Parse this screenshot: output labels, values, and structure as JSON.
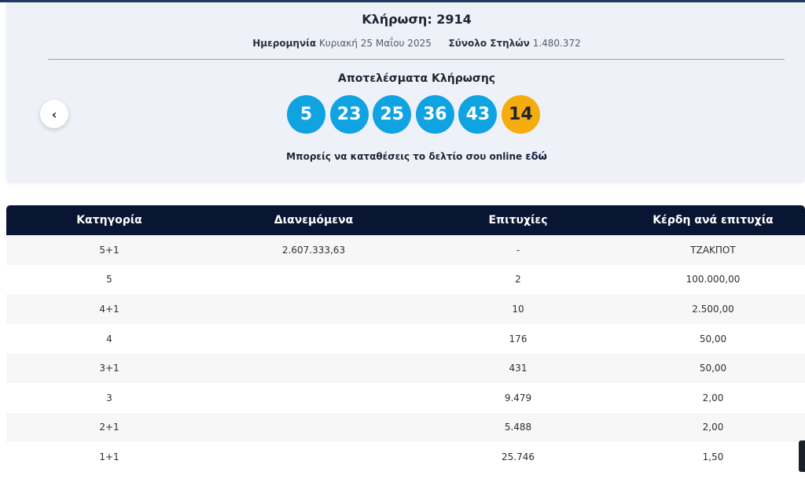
{
  "draw": {
    "title": "Κλήρωση: 2914",
    "date_label": "Ημερομηνία",
    "date_value": "Κυριακή 25 Μαΐου 2025",
    "columns_label": "Σύνολο Στηλών",
    "columns_value": "1.480.372",
    "results_title": "Αποτελέσματα Κλήρωσης",
    "numbers": [
      "5",
      "23",
      "25",
      "36",
      "43"
    ],
    "bonus": "14",
    "online_text": "Μπορείς να καταθέσεις το δελτίο σου online",
    "online_link": "εδώ",
    "prev_icon": "chevron-left-icon"
  },
  "colors": {
    "ball": "#0fa3e2",
    "bonus_ball": "#f5ad0d",
    "table_header": "#081634"
  },
  "table": {
    "headers": [
      "Κατηγορία",
      "Διανεμόμενα",
      "Επιτυχίες",
      "Κέρδη ανά επιτυχία"
    ],
    "rows": [
      [
        "5+1",
        "2.607.333,63",
        "-",
        "ΤΖΑΚΠΟΤ"
      ],
      [
        "5",
        "",
        "2",
        "100.000,00"
      ],
      [
        "4+1",
        "",
        "10",
        "2.500,00"
      ],
      [
        "4",
        "",
        "176",
        "50,00"
      ],
      [
        "3+1",
        "",
        "431",
        "50,00"
      ],
      [
        "3",
        "",
        "9.479",
        "2,00"
      ],
      [
        "2+1",
        "",
        "5.488",
        "2,00"
      ],
      [
        "1+1",
        "",
        "25.746",
        "1,50"
      ]
    ]
  }
}
